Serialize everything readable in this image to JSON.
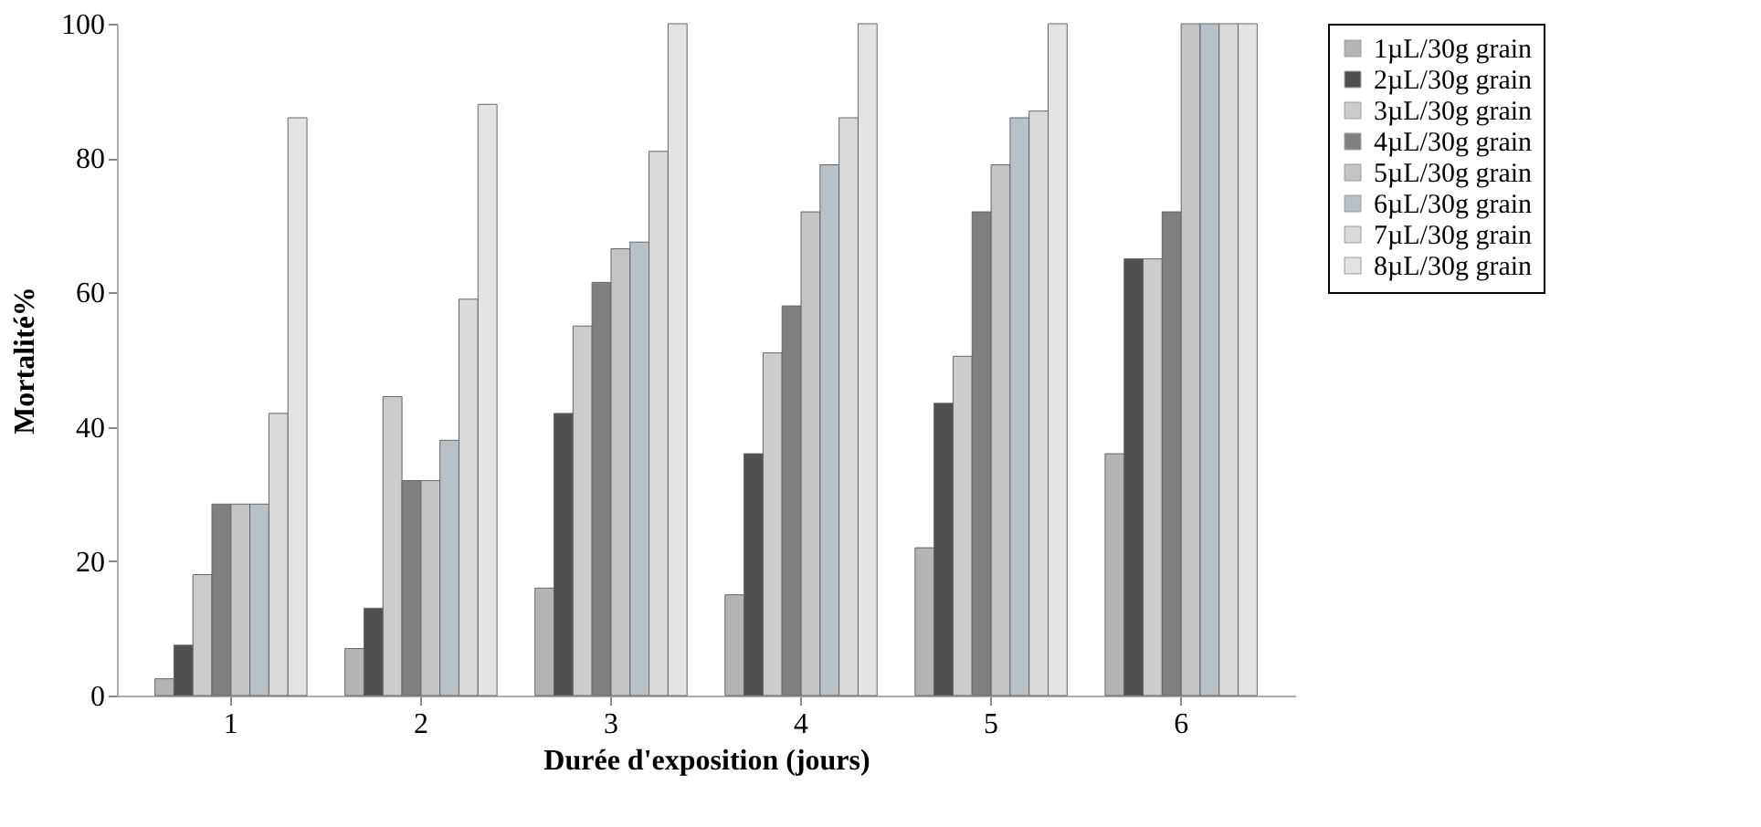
{
  "chart_data": {
    "type": "bar",
    "xlabel": "Durée d'exposition (jours)",
    "ylabel": "Mortalité%",
    "categories": [
      "1",
      "2",
      "3",
      "4",
      "5",
      "6"
    ],
    "series": [
      {
        "name": "1µL/30g grain",
        "color": "#b4b4b4",
        "values": [
          2.5,
          7,
          16,
          15,
          22,
          36
        ]
      },
      {
        "name": "2µL/30g grain",
        "color": "#505050",
        "values": [
          7.5,
          13,
          42,
          36,
          43.5,
          65
        ]
      },
      {
        "name": "3µL/30g grain",
        "color": "#cccccc",
        "values": [
          18,
          44.5,
          55,
          51,
          50.5,
          65
        ]
      },
      {
        "name": "4µL/30g grain",
        "color": "#808080",
        "values": [
          28.5,
          32,
          61.5,
          58,
          72,
          72
        ]
      },
      {
        "name": "5µL/30g grain",
        "color": "#c4c4c4",
        "values": [
          28.5,
          32,
          66.5,
          72,
          79,
          100
        ]
      },
      {
        "name": "6µL/30g grain",
        "color": "#b8c0c8",
        "values": [
          28.5,
          38,
          67.5,
          79,
          86,
          100
        ]
      },
      {
        "name": "7µL/30g grain",
        "color": "#dadada",
        "values": [
          42,
          59,
          81,
          86,
          87,
          100
        ]
      },
      {
        "name": "8µL/30g grain",
        "color": "#e4e4e4",
        "values": [
          86,
          88,
          100,
          100,
          100,
          100
        ]
      }
    ],
    "ylim": [
      0,
      100
    ],
    "yticks": [
      0,
      20,
      40,
      60,
      80,
      100
    ],
    "grid": false,
    "legend": "top right"
  }
}
